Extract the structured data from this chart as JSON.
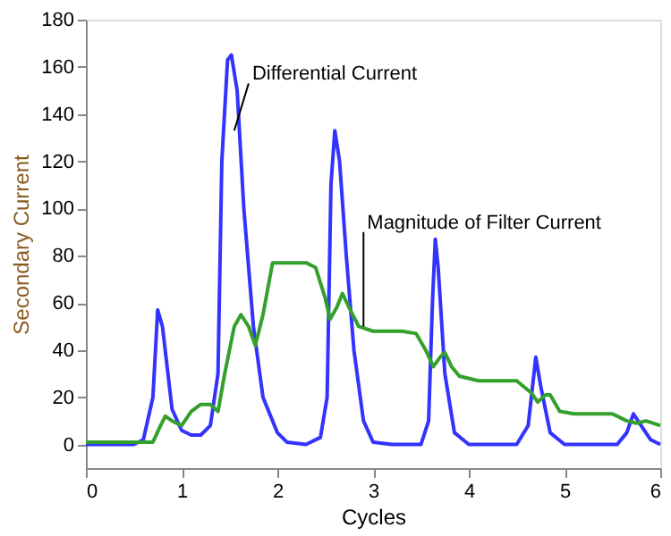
{
  "chart_data": {
    "type": "line",
    "xlabel": "Cycles",
    "ylabel": "Secondary Current",
    "xlim": [
      0,
      6
    ],
    "ylim": [
      -10,
      180
    ],
    "xticks": [
      0,
      1,
      2,
      3,
      4,
      5,
      6
    ],
    "yticks": [
      0,
      20,
      40,
      60,
      80,
      100,
      120,
      140,
      160,
      180
    ],
    "grid": false,
    "line_style": "solid",
    "marker": "none",
    "series": [
      {
        "color": "#3333ff",
        "x": [
          0,
          0.5,
          0.6,
          0.7,
          0.75,
          0.8,
          0.9,
          1.0,
          1.1,
          1.2,
          1.3,
          1.38,
          1.42,
          1.48,
          1.52,
          1.58,
          1.65,
          1.75,
          1.85,
          2.0,
          2.1,
          2.3,
          2.45,
          2.52,
          2.56,
          2.6,
          2.65,
          2.72,
          2.8,
          2.9,
          3.0,
          3.2,
          3.5,
          3.58,
          3.62,
          3.65,
          3.68,
          3.75,
          3.85,
          4.0,
          4.5,
          4.62,
          4.7,
          4.75,
          4.85,
          5.0,
          5.55,
          5.65,
          5.72,
          5.8,
          5.9,
          6.0
        ],
        "values": [
          0,
          0,
          2,
          20,
          57,
          50,
          15,
          6,
          4,
          4,
          8,
          30,
          120,
          163,
          165,
          150,
          100,
          50,
          20,
          5,
          1,
          0,
          3,
          20,
          110,
          133,
          120,
          80,
          40,
          10,
          1,
          0,
          0,
          10,
          60,
          87,
          75,
          30,
          5,
          0,
          0,
          8,
          37,
          25,
          5,
          0,
          0,
          5,
          13,
          8,
          2,
          0
        ]
      },
      {
        "color": "#33a02c",
        "x": [
          0,
          0.7,
          0.78,
          0.83,
          0.9,
          1.0,
          1.1,
          1.2,
          1.3,
          1.38,
          1.45,
          1.55,
          1.62,
          1.7,
          1.77,
          1.85,
          1.95,
          2.05,
          2.3,
          2.4,
          2.5,
          2.55,
          2.62,
          2.68,
          2.75,
          2.85,
          3.0,
          3.3,
          3.45,
          3.55,
          3.63,
          3.7,
          3.75,
          3.82,
          3.9,
          4.1,
          4.5,
          4.65,
          4.72,
          4.8,
          4.85,
          4.95,
          5.1,
          5.5,
          5.65,
          5.75,
          5.85,
          6.0
        ],
        "values": [
          1,
          1,
          8,
          12,
          10,
          8,
          14,
          17,
          17,
          14,
          30,
          50,
          55,
          50,
          42,
          55,
          77,
          77,
          77,
          75,
          62,
          53,
          58,
          64,
          58,
          50,
          48,
          48,
          47,
          40,
          33,
          37,
          39,
          33,
          29,
          27,
          27,
          22,
          18,
          21,
          21,
          14,
          13,
          13,
          10,
          9,
          10,
          8
        ]
      }
    ],
    "annotations": [
      {
        "text": "Differential Current",
        "x": 1.55,
        "y": 133
      },
      {
        "text": "Magnitude of Filter Current",
        "x": 2.9,
        "y": 50
      }
    ]
  }
}
